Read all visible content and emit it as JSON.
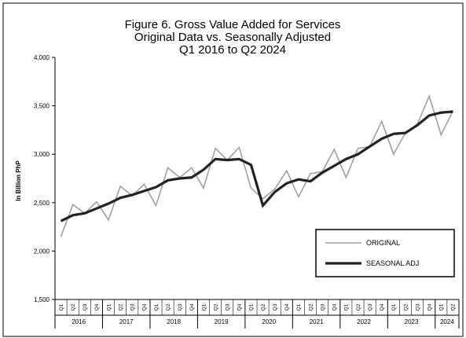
{
  "chart_data": {
    "type": "line",
    "title": [
      "Figure 6. Gross Value Added for Services",
      "Original Data vs. Seasonally Adjusted",
      "Q1 2016 to Q2 2024"
    ],
    "ylabel": "In Billion PhP",
    "ylim": [
      1500,
      4000
    ],
    "yticks": [
      "1,500",
      "2,000",
      "2,500",
      "3,000",
      "3,500",
      "4,000"
    ],
    "ytick_values": [
      1500,
      2000,
      2500,
      3000,
      3500,
      4000
    ],
    "years": [
      "2016",
      "2017",
      "2018",
      "2019",
      "2020",
      "2021",
      "2022",
      "2023",
      "2024"
    ],
    "x": [
      "Q1",
      "Q2",
      "Q3",
      "Q4",
      "Q1",
      "Q2",
      "Q3",
      "Q4",
      "Q1",
      "Q2",
      "Q3",
      "Q4",
      "Q1",
      "Q2",
      "Q3",
      "Q4",
      "Q1",
      "Q2",
      "Q3",
      "Q4",
      "Q1",
      "Q2",
      "Q3",
      "Q4",
      "Q1",
      "Q2",
      "Q3",
      "Q4",
      "Q1",
      "Q2",
      "Q3",
      "Q4",
      "Q1",
      "Q2"
    ],
    "series": [
      {
        "name": "ORIGINAL",
        "color": "#a0a0a0",
        "values": [
          2150,
          2480,
          2390,
          2510,
          2320,
          2670,
          2570,
          2690,
          2470,
          2860,
          2760,
          2860,
          2650,
          3060,
          2940,
          3070,
          2650,
          2540,
          2640,
          2830,
          2560,
          2800,
          2820,
          3050,
          2760,
          3060,
          3080,
          3340,
          3000,
          3220,
          3310,
          3600,
          3200,
          3450
        ]
      },
      {
        "name": "SEASONAL ADJ",
        "color": "#222222",
        "values": [
          2310,
          2370,
          2390,
          2440,
          2490,
          2550,
          2580,
          2620,
          2660,
          2730,
          2750,
          2760,
          2840,
          2950,
          2940,
          2950,
          2890,
          2470,
          2610,
          2700,
          2740,
          2720,
          2810,
          2880,
          2950,
          3000,
          3080,
          3160,
          3210,
          3220,
          3300,
          3400,
          3430,
          3440
        ]
      }
    ],
    "legend_position": "bottom-right",
    "grid": false
  }
}
